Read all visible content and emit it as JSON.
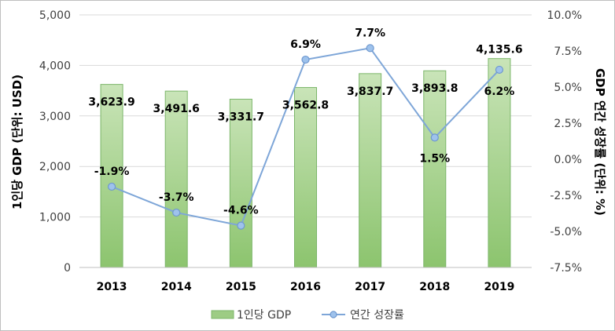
{
  "chart_data": {
    "type": "bar+line",
    "categories": [
      "2013",
      "2014",
      "2015",
      "2016",
      "2017",
      "2018",
      "2019"
    ],
    "series": [
      {
        "name": "1인당 GDP",
        "type": "bar",
        "axis": "left",
        "values": [
          3623.9,
          3491.6,
          3331.7,
          3562.8,
          3837.7,
          3893.8,
          4135.6
        ],
        "labels": [
          "3,623.9",
          "3,491.6",
          "3,331.7",
          "3,562.8",
          "3,837.7",
          "3,893.8",
          "4,135.6"
        ],
        "color": "#9dcc84"
      },
      {
        "name": "연간 성장률",
        "type": "line",
        "axis": "right",
        "values": [
          -1.9,
          -3.7,
          -4.6,
          6.9,
          7.7,
          1.5,
          6.2
        ],
        "labels": [
          "-1.9%",
          "-3.7%",
          "-4.6%",
          "6.9%",
          "7.7%",
          "1.5%",
          "6.2%"
        ],
        "color": "#7ea6d8"
      }
    ],
    "ylabel_left": "1인당 GDP (단위: USD)",
    "ylabel_right": "GDP 연간 성장률 (단위: %)",
    "ylim_left": [
      0,
      5000
    ],
    "ylim_right": [
      -7.5,
      10
    ],
    "yticks_left": [
      "5,000",
      "4,000",
      "3,000",
      "2,000",
      "1,000",
      "0"
    ],
    "yticks_right": [
      "10.0%",
      "7.5%",
      "5.0%",
      "2.5%",
      "0.0%",
      "-2.5%",
      "-5.0%",
      "-7.5%"
    ],
    "grid": true,
    "legend_position": "bottom"
  }
}
